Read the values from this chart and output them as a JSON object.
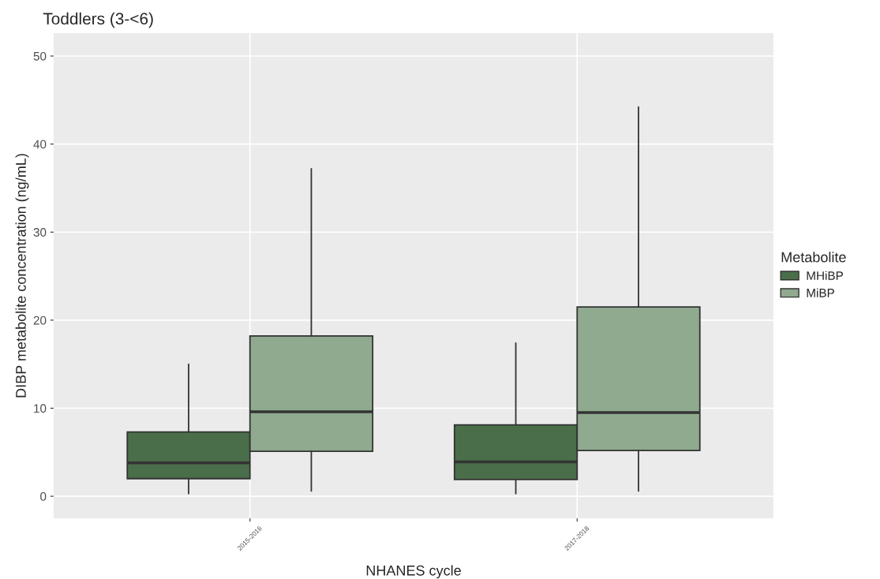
{
  "chart_data": {
    "type": "box",
    "title": "Toddlers (3-<6)",
    "xlabel": "NHANES cycle",
    "ylabel": "DIBP metabolite concentration (ng/mL)",
    "legend_title": "Metabolite",
    "categories": [
      "2015-2016",
      "2017-2018"
    ],
    "series": [
      {
        "name": "MHiBP",
        "color": "#4a6e4a",
        "boxes": [
          {
            "low": 0.3,
            "q1": 2.0,
            "median": 3.8,
            "q3": 7.3,
            "high": 15.0
          },
          {
            "low": 0.3,
            "q1": 1.9,
            "median": 3.9,
            "q3": 8.1,
            "high": 17.4
          }
        ]
      },
      {
        "name": "MiBP",
        "color": "#8faa8e",
        "boxes": [
          {
            "low": 0.6,
            "q1": 5.1,
            "median": 9.6,
            "q3": 18.2,
            "high": 37.2
          },
          {
            "low": 0.6,
            "q1": 5.2,
            "median": 9.5,
            "q3": 21.5,
            "high": 44.2
          }
        ]
      }
    ],
    "ylim": [
      -2.5,
      52.6
    ],
    "yticks": [
      0,
      10,
      20,
      30,
      40,
      50
    ],
    "grid": true,
    "legend": "right"
  }
}
